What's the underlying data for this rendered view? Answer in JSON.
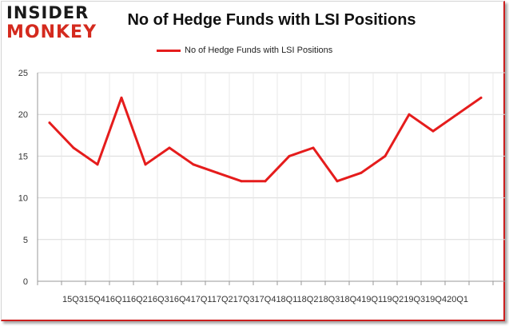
{
  "header": {
    "logo_top": "INSIDER",
    "logo_bottom": "MONKEY",
    "title": "No of Hedge Funds with LSI Positions"
  },
  "colors": {
    "series": "#e51c1c",
    "grid": "#d9d9d9",
    "axis": "#999999",
    "logo_red": "#d42a1e"
  },
  "chart_data": {
    "type": "line",
    "title": "No of Hedge Funds with LSI Positions",
    "xlabel": "",
    "ylabel": "",
    "ylim": [
      0,
      25
    ],
    "yticks": [
      0,
      5,
      10,
      15,
      20,
      25
    ],
    "grid": true,
    "legend_position": "top-center",
    "x": [
      "2015Q3",
      "2015Q4",
      "2016Q1",
      "2016Q2",
      "2016Q3",
      "2016Q4",
      "2017Q1",
      "2017Q2",
      "2017Q3",
      "2017Q4",
      "2018Q1",
      "2018Q2",
      "2018Q3",
      "2018Q4",
      "2019Q1",
      "2019Q2",
      "2019Q3",
      "2019Q4",
      "2020Q1"
    ],
    "tick_text": "15Q315Q416Q116Q216Q316Q417Q117Q217Q317Q418Q118Q218Q318Q419Q119Q219Q319Q420Q1",
    "series": [
      {
        "name": "No of Hedge Funds with LSI Positions",
        "values": [
          19,
          16,
          14,
          22,
          14,
          16,
          14,
          13,
          12,
          12,
          15,
          16,
          12,
          13,
          15,
          20,
          18,
          20,
          22
        ]
      }
    ]
  }
}
